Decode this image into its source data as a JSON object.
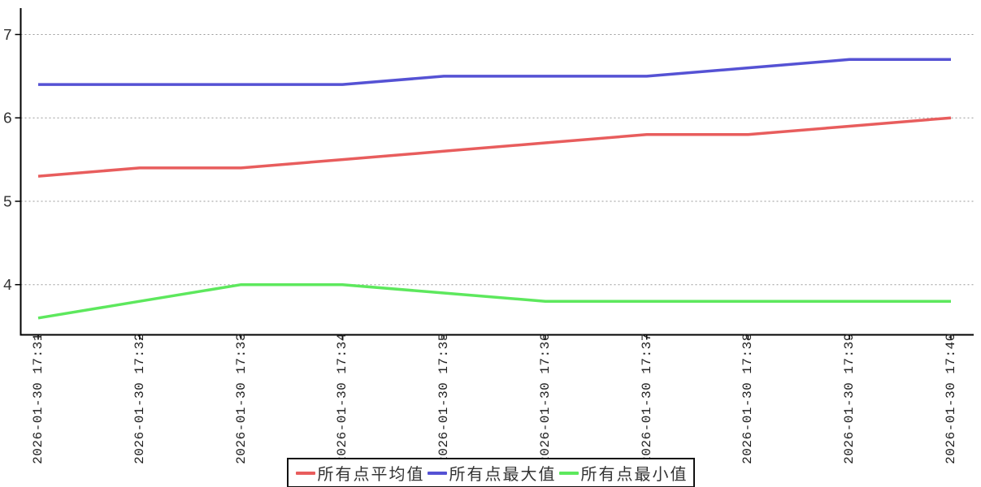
{
  "chart_data": {
    "type": "line",
    "title": "",
    "xlabel": "",
    "ylabel": "",
    "x_labels": [
      "2026-01-30 17:31",
      "2026-01-30 17:32",
      "2026-01-30 17:33",
      "2026-01-30 17:34",
      "2026-01-30 17:35",
      "2026-01-30 17:36",
      "2026-01-30 17:37",
      "2026-01-30 17:38",
      "2026-01-30 17:39",
      "2026-01-30 17:40"
    ],
    "y_ticks": [
      7,
      6,
      5,
      4
    ],
    "ylim": [
      3.4,
      7.3
    ],
    "grid": "horizontal-dotted",
    "legend_position": "bottom-center",
    "series": [
      {
        "name": "所有点平均值",
        "color": "#e85d5d",
        "values": [
          5.3,
          5.4,
          5.4,
          5.5,
          5.6,
          5.7,
          5.8,
          5.8,
          5.9,
          6.0
        ]
      },
      {
        "name": "所有点最大值",
        "color": "#5552d4",
        "values": [
          6.4,
          6.4,
          6.4,
          6.4,
          6.5,
          6.5,
          6.5,
          6.6,
          6.7,
          6.7
        ]
      },
      {
        "name": "所有点最小值",
        "color": "#5de85d",
        "values": [
          3.6,
          3.8,
          4.0,
          4.0,
          3.9,
          3.8,
          3.8,
          3.8,
          3.8,
          3.8
        ]
      }
    ],
    "colors": {
      "axis": "#000000",
      "grid": "#999999",
      "tick_text": "#333333"
    }
  }
}
